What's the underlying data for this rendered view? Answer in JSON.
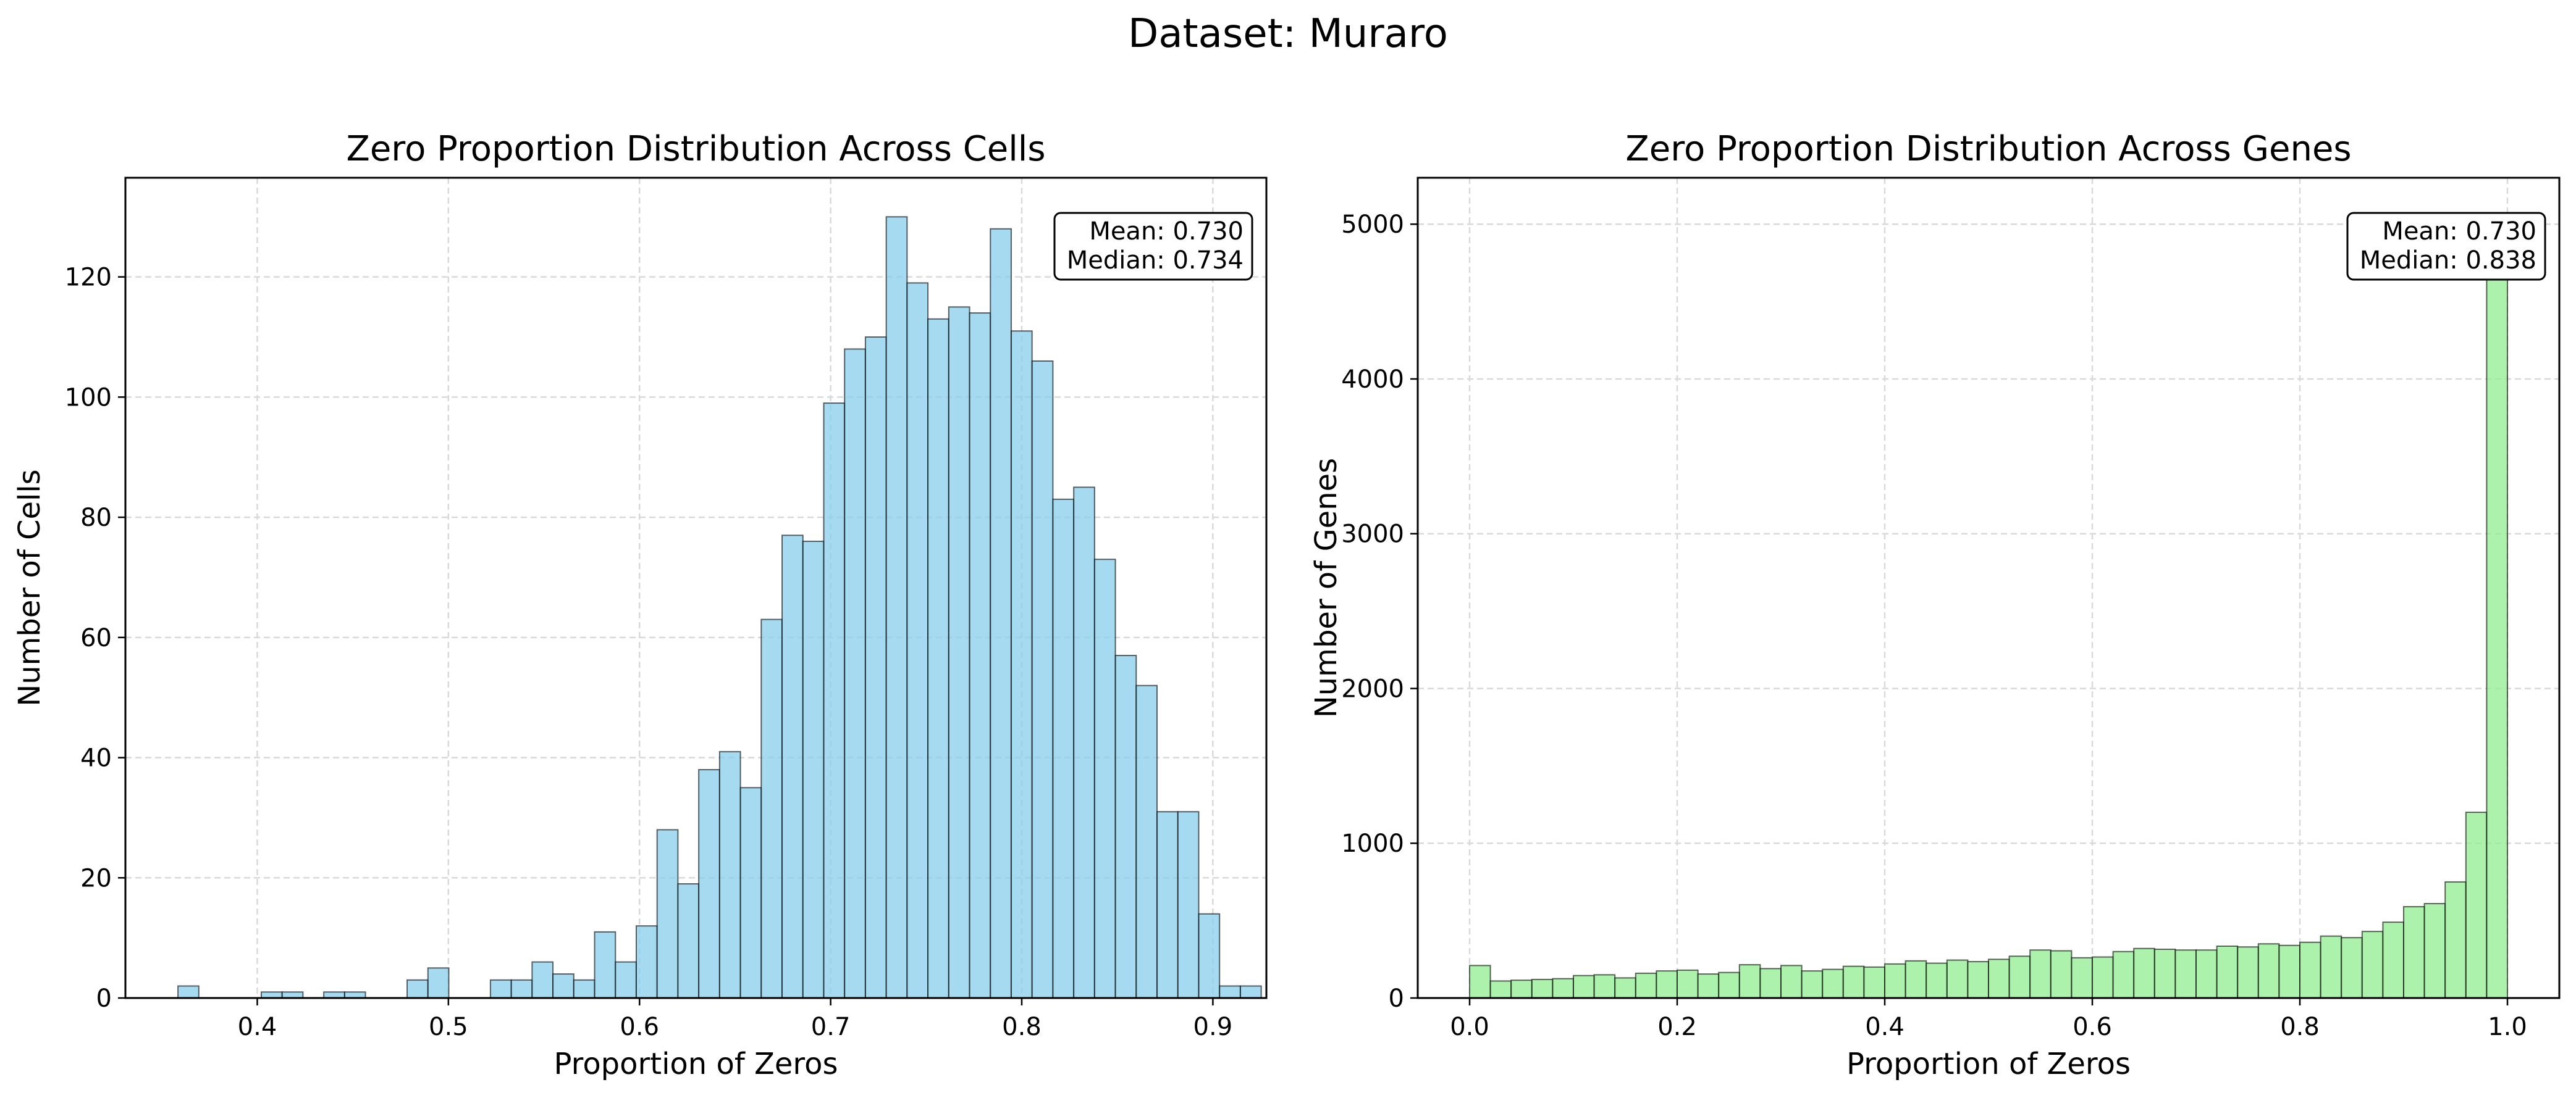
{
  "figure": {
    "suptitle": "Dataset: Muraro"
  },
  "chart_data": [
    {
      "type": "bar",
      "title": "Zero Proportion Distribution Across Cells",
      "xlabel": "Proportion of Zeros",
      "ylabel": "Number of Cells",
      "bar_color": "#87CEEB",
      "edge_color": "#000000",
      "xlim": [
        0.331,
        0.928
      ],
      "ylim": [
        0,
        136.5
      ],
      "xticks": [
        0.4,
        0.5,
        0.6,
        0.7,
        0.8,
        0.9
      ],
      "xtick_labels": [
        "0.4",
        "0.5",
        "0.6",
        "0.7",
        "0.8",
        "0.9"
      ],
      "yticks": [
        0,
        20,
        40,
        60,
        80,
        100,
        120
      ],
      "ytick_labels": [
        "0",
        "20",
        "40",
        "60",
        "80",
        "100",
        "120"
      ],
      "grid": true,
      "bin_start": 0.3585,
      "bin_width": 0.0109,
      "counts": [
        2,
        0,
        0,
        0,
        1,
        1,
        0,
        1,
        1,
        0,
        0,
        3,
        5,
        0,
        0,
        3,
        3,
        6,
        4,
        3,
        11,
        6,
        12,
        28,
        19,
        38,
        41,
        35,
        63,
        77,
        76,
        99,
        108,
        110,
        130,
        119,
        113,
        115,
        114,
        128,
        111,
        106,
        83,
        85,
        73,
        57,
        52,
        31,
        31,
        14,
        2,
        2
      ],
      "stats_box": {
        "mean": "Mean: 0.730",
        "median": "Median: 0.734",
        "placement": "top-right"
      }
    },
    {
      "type": "bar",
      "title": "Zero Proportion Distribution Across Genes",
      "xlabel": "Proportion of Zeros",
      "ylabel": "Number of Genes",
      "bar_color": "#90EE90",
      "edge_color": "#000000",
      "xlim": [
        -0.05,
        1.05
      ],
      "ylim": [
        0,
        5300
      ],
      "xticks": [
        0.0,
        0.2,
        0.4,
        0.6,
        0.8,
        1.0
      ],
      "xtick_labels": [
        "0.0",
        "0.2",
        "0.4",
        "0.6",
        "0.8",
        "1.0"
      ],
      "yticks": [
        0,
        1000,
        2000,
        3000,
        4000,
        5000
      ],
      "ytick_labels": [
        "0",
        "1000",
        "2000",
        "3000",
        "4000",
        "5000"
      ],
      "grid": true,
      "bin_start": 0.0,
      "bin_width": 0.02,
      "counts": [
        210,
        110,
        115,
        120,
        125,
        145,
        150,
        130,
        160,
        175,
        180,
        155,
        165,
        215,
        190,
        210,
        175,
        185,
        205,
        200,
        220,
        240,
        225,
        245,
        235,
        250,
        270,
        310,
        305,
        260,
        265,
        300,
        320,
        315,
        310,
        310,
        335,
        330,
        350,
        340,
        360,
        400,
        390,
        430,
        490,
        590,
        610,
        750,
        1200,
        4900
      ],
      "stats_box": {
        "mean": "Mean: 0.730",
        "median": "Median: 0.838",
        "placement": "top-right"
      }
    }
  ]
}
